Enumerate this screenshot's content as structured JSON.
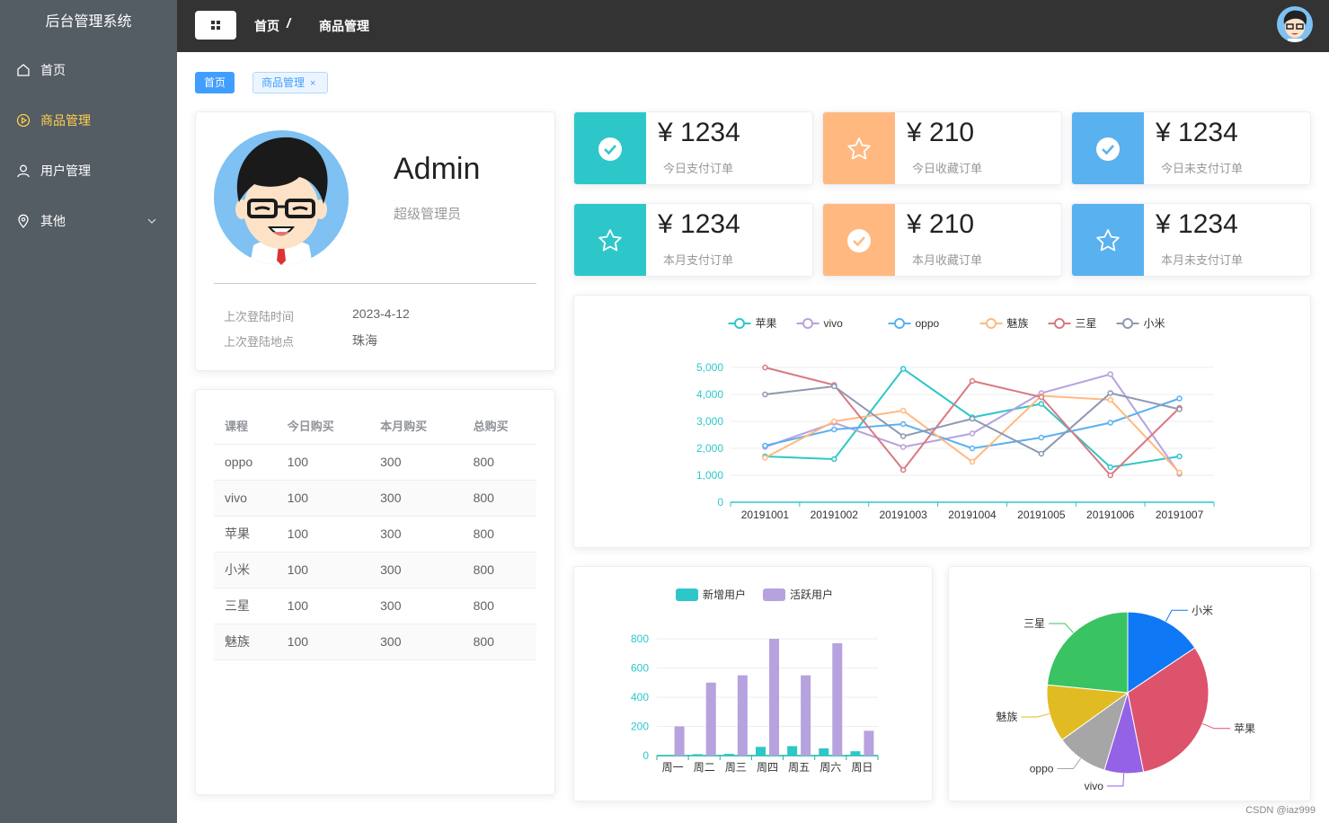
{
  "sidebar": {
    "title": "后台管理系统",
    "items": [
      {
        "label": "首页",
        "icon": "home-icon",
        "active": false
      },
      {
        "label": "商品管理",
        "icon": "video-play-icon",
        "active": true
      },
      {
        "label": "用户管理",
        "icon": "user-icon",
        "active": false
      },
      {
        "label": "其他",
        "icon": "location-icon",
        "active": false
      }
    ]
  },
  "header": {
    "breadcrumb": [
      "首页",
      "商品管理"
    ],
    "separator": "/"
  },
  "tags": [
    {
      "label": "首页"
    },
    {
      "label": "商品管理",
      "close": "×"
    }
  ],
  "user": {
    "name": "Admin",
    "role": "超级管理员",
    "last_login_time_label": "上次登陆时间",
    "last_login_time": "2023-4-12",
    "last_login_place_label": "上次登陆地点",
    "last_login_place": "珠海"
  },
  "table": {
    "headers": [
      "课程",
      "今日购买",
      "本月购买",
      "总购买"
    ],
    "rows": [
      [
        "oppo",
        "100",
        "300",
        "800"
      ],
      [
        "vivo",
        "100",
        "300",
        "800"
      ],
      [
        "苹果",
        "100",
        "300",
        "800"
      ],
      [
        "小米",
        "100",
        "300",
        "800"
      ],
      [
        "三星",
        "100",
        "300",
        "800"
      ],
      [
        "魅族",
        "100",
        "300",
        "800"
      ]
    ]
  },
  "stats": [
    {
      "value": "¥ 1234",
      "label": "今日支付订单",
      "icon": "success-icon",
      "color": "#2ec7c9"
    },
    {
      "value": "¥ 210",
      "label": "今日收藏订单",
      "icon": "star-icon",
      "color": "#ffb980"
    },
    {
      "value": "¥ 1234",
      "label": "今日未支付订单",
      "icon": "success-icon",
      "color": "#5ab1ef"
    },
    {
      "value": "¥ 1234",
      "label": "本月支付订单",
      "icon": "star-icon",
      "color": "#2ec7c9"
    },
    {
      "value": "¥ 210",
      "label": "本月收藏订单",
      "icon": "success-icon",
      "color": "#ffb980"
    },
    {
      "value": "¥ 1234",
      "label": "本月未支付订单",
      "icon": "star-icon",
      "color": "#5ab1ef"
    }
  ],
  "chart_data": [
    {
      "type": "line",
      "x": [
        "20191001",
        "20191002",
        "20191003",
        "20191004",
        "20191005",
        "20191006",
        "20191007"
      ],
      "ylim": [
        0,
        5000
      ],
      "yticks": [
        "0",
        "1,000",
        "2,000",
        "3,000",
        "4,000",
        "5,000"
      ],
      "legend_position": "top-center",
      "grid": true,
      "series": [
        {
          "name": "苹果",
          "color": "#2ec7c9",
          "values": [
            1700,
            1600,
            4950,
            3150,
            3650,
            1300,
            1700
          ]
        },
        {
          "name": "vivo",
          "color": "#b6a2de",
          "values": [
            2050,
            2950,
            2050,
            2550,
            4050,
            4750,
            1050
          ]
        },
        {
          "name": "oppo",
          "color": "#5ab1ef",
          "values": [
            2100,
            2700,
            2900,
            2000,
            2400,
            2950,
            3850
          ]
        },
        {
          "name": "魅族",
          "color": "#ffb980",
          "values": [
            1650,
            3000,
            3400,
            1500,
            3950,
            3800,
            1100
          ]
        },
        {
          "name": "三星",
          "color": "#d87a80",
          "values": [
            5000,
            4350,
            1200,
            4500,
            3900,
            1000,
            3500
          ]
        },
        {
          "name": "小米",
          "color": "#8d98b3",
          "values": [
            4000,
            4300,
            2450,
            3100,
            1800,
            4050,
            3450
          ]
        }
      ]
    },
    {
      "type": "bar",
      "categories": [
        "周一",
        "周二",
        "周三",
        "周四",
        "周五",
        "周六",
        "周日"
      ],
      "ylim": [
        0,
        800
      ],
      "yticks": [
        "0",
        "200",
        "400",
        "600",
        "800"
      ],
      "legend_position": "top-center",
      "grid": true,
      "series": [
        {
          "name": "新增用户",
          "color": "#2ec7c9",
          "values": [
            5,
            10,
            12,
            60,
            65,
            50,
            30
          ]
        },
        {
          "name": "活跃用户",
          "color": "#b6a2de",
          "values": [
            200,
            500,
            550,
            800,
            550,
            770,
            170
          ]
        }
      ]
    },
    {
      "type": "pie",
      "slices": [
        {
          "name": "小米",
          "value": 2999,
          "color": "#0f78f4"
        },
        {
          "name": "苹果",
          "value": 5999,
          "color": "#dd536b"
        },
        {
          "name": "vivo",
          "value": 1500,
          "color": "#9462e5"
        },
        {
          "name": "oppo",
          "value": 1999,
          "color": "#a6a6a6"
        },
        {
          "name": "魅族",
          "value": 2200,
          "color": "#e1bb22"
        },
        {
          "name": "三星",
          "value": 4500,
          "color": "#39c362"
        }
      ]
    }
  ],
  "watermark": "CSDN @iaz999"
}
